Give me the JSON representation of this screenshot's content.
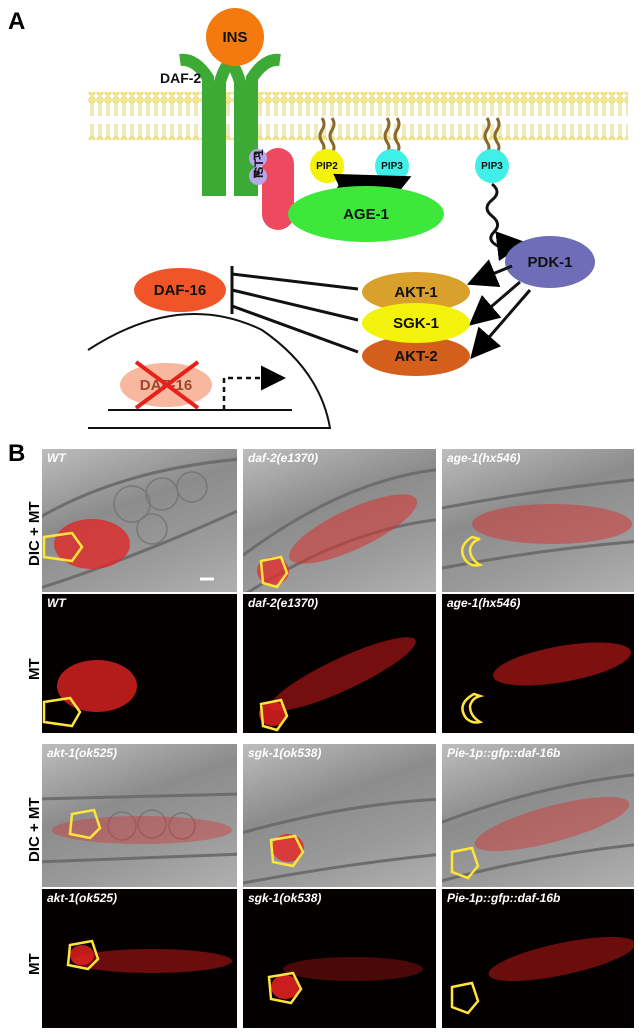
{
  "panels": {
    "a_letter": "A",
    "b_letter": "B"
  },
  "pathway": {
    "ins": "INS",
    "daf2": "DAF-2",
    "p1": "P",
    "p2": "P",
    "ist1": "IST-1",
    "pip2": "PIP2",
    "pip3_a": "PIP3",
    "pip3_b": "PIP3",
    "age1": "AGE-1",
    "pdk1": "PDK-1",
    "akt1": "AKT-1",
    "sgk1": "SGK-1",
    "akt2": "AKT-2",
    "daf16": "DAF-16",
    "daf16_nuclear": "DAF-16",
    "colors": {
      "ins": "#f47a10",
      "receptor": "#3daa35",
      "membrane": "#f2e88a",
      "phospho": "#b9a7ee",
      "ist1": "#ee4a5f",
      "pip2": "#f5f20a",
      "pip3": "#40f0e8",
      "age1": "#3de83a",
      "pdk1": "#6f6db8",
      "akt1": "#d9a12c",
      "sgk1": "#f3f20a",
      "akt2": "#d45f1c",
      "daf16": "#f0552a",
      "daf16_faded": "#f8b8a0",
      "cross": "#e8201a"
    }
  },
  "micrographs": {
    "row_labels": [
      "DIC + MT",
      "MT",
      "DIC + MT",
      "MT"
    ],
    "captions": [
      [
        "WT",
        "daf-2(e1370)",
        "age-1(hx546)"
      ],
      [
        "WT",
        "daf-2(e1370)",
        "age-1(hx546)"
      ],
      [
        "akt-1(ok525)",
        "sgk-1(ok538)",
        "Pie-1p::gfp::daf-16b"
      ],
      [
        "akt-1(ok525)",
        "sgk-1(ok538)",
        "Pie-1p::gfp::daf-16b"
      ]
    ]
  }
}
